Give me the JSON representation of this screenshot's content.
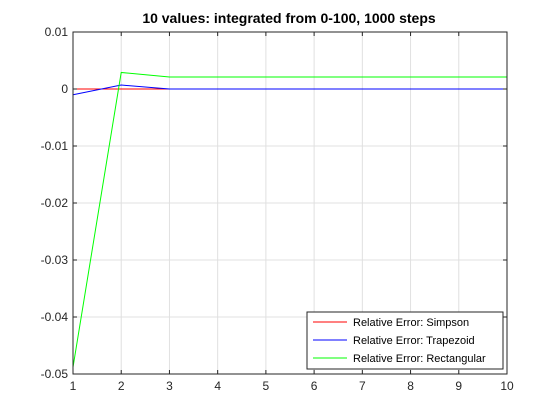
{
  "chart_data": {
    "type": "line",
    "title": "10 values: integrated from 0-100, 1000 steps",
    "xlabel": "",
    "ylabel": "",
    "xlim": [
      1,
      10
    ],
    "ylim": [
      -0.05,
      0.01
    ],
    "x_ticks": [
      "1",
      "2",
      "3",
      "4",
      "5",
      "6",
      "7",
      "8",
      "9",
      "10"
    ],
    "y_ticks": [
      {
        "value": 0.01,
        "label": "0.01"
      },
      {
        "value": 0,
        "label": "0"
      },
      {
        "value": -0.01,
        "label": "-0.01"
      },
      {
        "value": -0.02,
        "label": "-0.02"
      },
      {
        "value": -0.03,
        "label": "-0.03"
      },
      {
        "value": -0.04,
        "label": "-0.04"
      },
      {
        "value": -0.05,
        "label": "-0.05"
      }
    ],
    "grid": true,
    "legend_position": "bottom-right",
    "x": [
      1,
      2,
      3,
      4,
      5,
      6,
      7,
      8,
      9,
      10
    ],
    "series": [
      {
        "name": "Relative Error: Simpson",
        "color": "#ff0000",
        "values": [
          0.0,
          0.0,
          0.0,
          0.0,
          0.0,
          0.0,
          0.0,
          0.0,
          0.0,
          0.0
        ]
      },
      {
        "name": "Relative Error: Trapezoid",
        "color": "#0000ff",
        "values": [
          -0.001,
          0.0007,
          0.0,
          0.0,
          0.0,
          0.0,
          0.0,
          0.0,
          0.0,
          0.0
        ]
      },
      {
        "name": "Relative Error: Rectangular",
        "color": "#00ff00",
        "values": [
          -0.0488,
          0.0029,
          0.0021,
          0.0021,
          0.0021,
          0.0021,
          0.0021,
          0.0021,
          0.0021,
          0.0021
        ]
      }
    ]
  }
}
